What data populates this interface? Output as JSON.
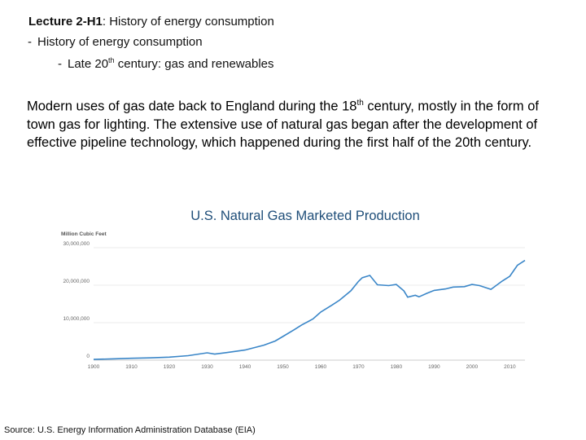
{
  "header": {
    "lecture_id": "Lecture 2-H1",
    "lecture_topic": ": History of energy consumption",
    "bullet_level1": "History of energy consumption",
    "bullet_level2_pre": "Late 20",
    "bullet_level2_sup": "th",
    "bullet_level2_post": " century: gas and renewables",
    "dash": "-"
  },
  "body": {
    "part1": "Modern uses of gas date back to England during the 18",
    "sup": "th",
    "part2": " century, mostly in the form of town gas for lighting. The extensive use of natural gas began after the development of effective pipeline technology, which happened during the first half of the 20th century."
  },
  "footer": {
    "source": "Source: U.S. Energy Information Administration Database (EIA)"
  },
  "colors": {
    "line": "#3a86c8",
    "grid": "#e4e4e4",
    "title": "#1f4e79"
  },
  "chart_data": {
    "type": "line",
    "title": "U.S. Natural Gas Marketed Production",
    "ylabel": "Million Cubic Feet",
    "xlabel": "",
    "ylim": [
      0,
      30000000
    ],
    "xlim": [
      1900,
      2014
    ],
    "x_ticks": [
      1900,
      1910,
      1920,
      1930,
      1940,
      1950,
      1960,
      1970,
      1980,
      1990,
      2000,
      2010
    ],
    "x_tick_labels": [
      "1900",
      "1910",
      "1920",
      "1930",
      "1940",
      "1950",
      "1960",
      "1970",
      "1980",
      "1990",
      "2000",
      "2010"
    ],
    "y_ticks": [
      0,
      10000000,
      20000000,
      30000000
    ],
    "y_tick_labels": [
      "0",
      "10,000,000",
      "20,000,000",
      "30,000,000"
    ],
    "grid": true,
    "series": [
      {
        "name": "U.S. Natural Gas Marketed Production",
        "x": [
          1900,
          1905,
          1910,
          1915,
          1920,
          1925,
          1930,
          1932,
          1935,
          1940,
          1945,
          1948,
          1950,
          1953,
          1955,
          1958,
          1960,
          1963,
          1965,
          1968,
          1970,
          1971,
          1973,
          1975,
          1978,
          1980,
          1982,
          1983,
          1985,
          1986,
          1988,
          1990,
          1993,
          1995,
          1998,
          2000,
          2002,
          2005,
          2008,
          2010,
          2012,
          2014
        ],
        "values": [
          200000,
          350000,
          500000,
          600000,
          800000,
          1200000,
          1950000,
          1600000,
          2000000,
          2700000,
          4000000,
          5100000,
          6300000,
          8100000,
          9400000,
          11000000,
          12800000,
          14700000,
          16000000,
          18500000,
          21000000,
          22000000,
          22600000,
          20100000,
          19900000,
          20200000,
          18500000,
          16800000,
          17300000,
          16900000,
          17800000,
          18600000,
          19000000,
          19500000,
          19600000,
          20200000,
          19900000,
          18900000,
          21100000,
          22400000,
          25300000,
          26600000
        ]
      }
    ]
  }
}
